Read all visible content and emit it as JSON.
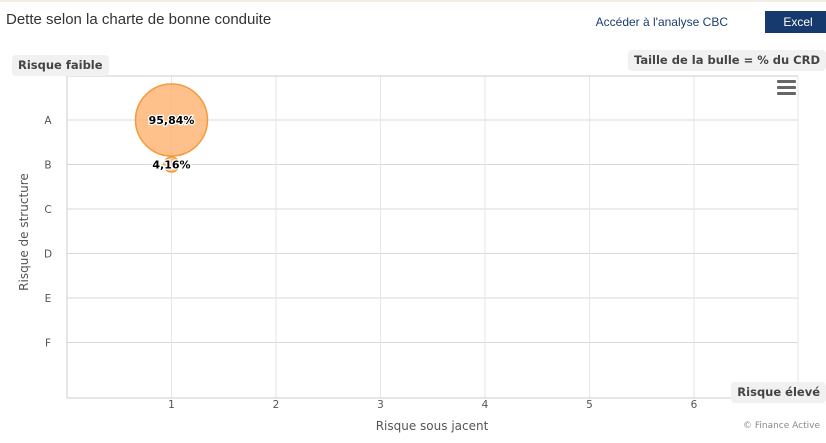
{
  "header": {
    "title": "Dette selon la charte de bonne conduite",
    "cbc_link": "Accéder à l'analyse CBC",
    "excel_button": "Excel"
  },
  "annotations": {
    "low_risk": "Risque faible",
    "bubble_size_note": "Taille de la bulle = % du CRD",
    "high_risk": "Risque élevé"
  },
  "credit": "© Finance Active",
  "icons": {
    "menu": "hamburger-menu-icon"
  },
  "colors": {
    "bubble_fill": "#ffb06a",
    "bubble_stroke": "#f59b3c",
    "grid": "#e6e6e6",
    "excel_button": "#173a6e"
  },
  "chart_data": {
    "type": "scatter",
    "variant": "bubble",
    "xlabel": "Risque sous jacent",
    "ylabel": "Risque de structure",
    "x_ticks": [
      "1",
      "2",
      "3",
      "4",
      "5",
      "6"
    ],
    "y_categories": [
      "A",
      "B",
      "C",
      "D",
      "E",
      "F"
    ],
    "xlim": [
      0,
      6
    ],
    "grid": true,
    "points": [
      {
        "x": 1,
        "y": "A",
        "value": 95.84,
        "label": "95,84%"
      },
      {
        "x": 1,
        "y": "B",
        "value": 4.16,
        "label": "4,16%"
      }
    ]
  }
}
